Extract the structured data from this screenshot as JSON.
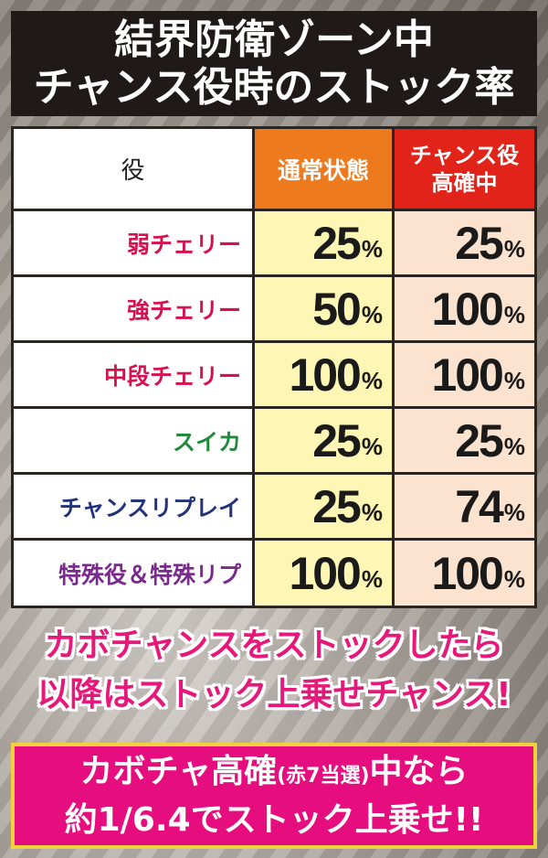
{
  "title": {
    "line1": "結界防衛ゾーン中",
    "line2": "チャンス役時のストック率"
  },
  "table": {
    "headers": {
      "role": "役",
      "normal": "通常状態",
      "chance_line1": "チャンス役",
      "chance_line2": "高確中"
    },
    "percent_sign": "%",
    "rows": [
      {
        "role": "弱チェリー",
        "color": "#d6134f",
        "normal": "25",
        "chance": "25"
      },
      {
        "role": "強チェリー",
        "color": "#d6134f",
        "normal": "50",
        "chance": "100"
      },
      {
        "role": "中段チェリー",
        "color": "#d6134f",
        "normal": "100",
        "chance": "100"
      },
      {
        "role": "スイカ",
        "color": "#1f8a3c",
        "normal": "25",
        "chance": "25"
      },
      {
        "role": "チャンスリプレイ",
        "color": "#23337a",
        "normal": "25",
        "chance": "74"
      },
      {
        "role": "特殊役＆特殊リプ",
        "color": "#7a2a8c",
        "normal": "100",
        "chance": "100"
      }
    ]
  },
  "message": {
    "line1": "カボチャンスをストックしたら",
    "line2": "以降はストック上乗せチャンス!"
  },
  "bottom": {
    "line1_pre": "カボチャ高確",
    "line1_small": "(赤7当選)",
    "line1_post": "中なら",
    "line2": "約1/6.4でストック上乗せ!!"
  }
}
